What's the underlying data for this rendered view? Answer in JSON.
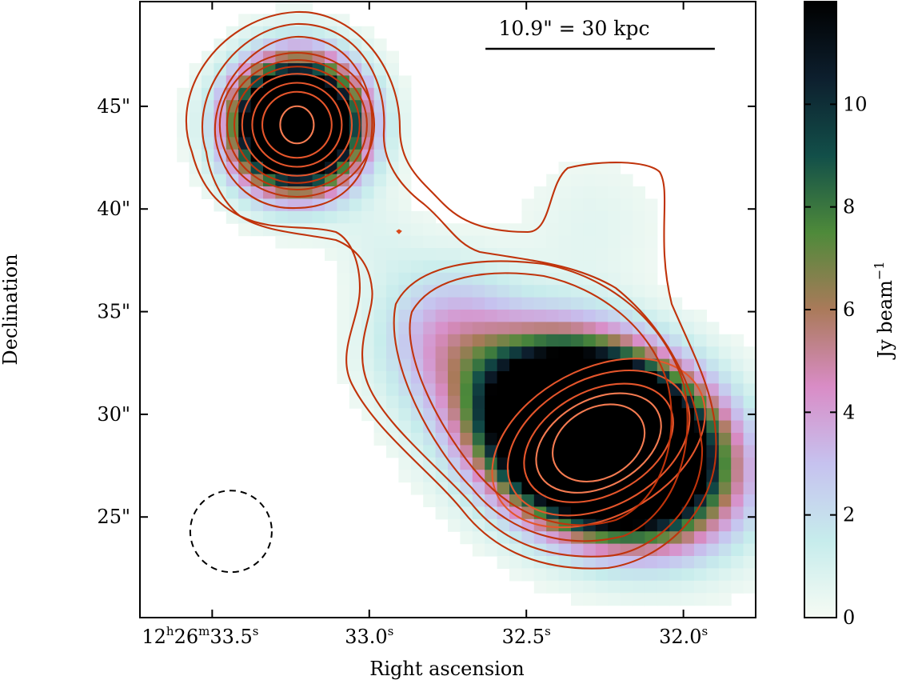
{
  "chart_data": {
    "type": "heatmap",
    "title": "",
    "xlabel": "Right ascension",
    "ylabel": "Declination",
    "colorbar_label": "Jy beam",
    "colorbar_label_exponent": "−1",
    "colorbar_range": [
      0,
      12
    ],
    "colorbar_ticks": [
      0,
      2,
      4,
      6,
      8,
      10
    ],
    "colormap": "cubehelix_r",
    "colormap_stops": [
      "#f6fbf4",
      "#c6ecec",
      "#c6c2ef",
      "#d98cc6",
      "#aa7a5a",
      "#4e8a3a",
      "#124f49",
      "#0d1f2e",
      "#000000"
    ],
    "contour_colors": [
      "#c0330b",
      "#e5552b",
      "#f57b51"
    ],
    "x_axis": {
      "unit": "seconds of RA",
      "range": [
        33.73,
        31.77
      ],
      "ticks": [
        {
          "value": 33.5,
          "label": "12h26m33.5s",
          "hours": "12",
          "minutes": "26",
          "seconds": "33.5"
        },
        {
          "value": 33.0,
          "label": "33.0s",
          "seconds": "33.0"
        },
        {
          "value": 32.5,
          "label": "32.5s",
          "seconds": "32.5"
        },
        {
          "value": 32.0,
          "label": "32.0s",
          "seconds": "32.0"
        }
      ]
    },
    "y_axis": {
      "unit": "arcsec (Dec offset)",
      "range": [
        20.1,
        50.1
      ],
      "ticks": [
        {
          "value": 25,
          "label": "25\""
        },
        {
          "value": 30,
          "label": "30\""
        },
        {
          "value": 35,
          "label": "35\""
        },
        {
          "value": 40,
          "label": "40\""
        },
        {
          "value": 45,
          "label": "45\""
        }
      ]
    },
    "sources": [
      {
        "name": "northern lobe",
        "ra_s": 33.23,
        "dec_arcsec": 44.1,
        "peak": 12.0
      },
      {
        "name": "southern lobe",
        "ra_s": 32.27,
        "dec_arcsec": 28.8,
        "peak": 12.0
      }
    ],
    "scale_bar": {
      "label": "10.9\" = 30 kpc",
      "length_arcsec": 10.9,
      "ra_s_left": 32.63,
      "ra_s_right": 31.9,
      "dec_arcsec": 47.8
    },
    "beam": {
      "ra_s": 33.44,
      "dec_arcsec": 24.3,
      "diameter_arcsec": 4.0,
      "style": "dashed circle"
    },
    "grid": false
  }
}
